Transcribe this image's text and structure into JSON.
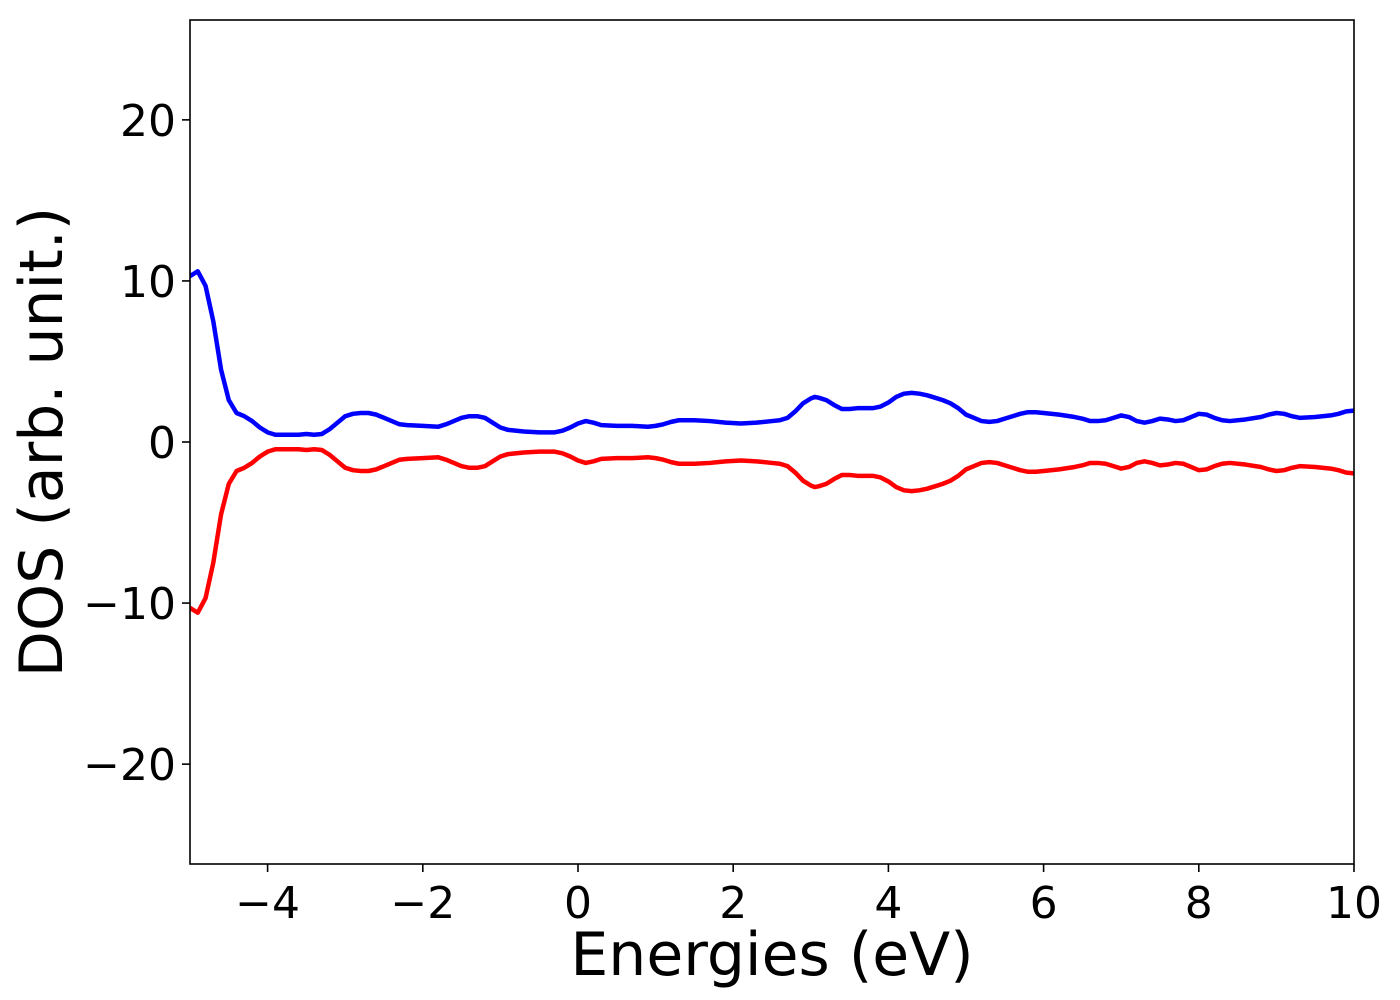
{
  "chart_data": {
    "type": "line",
    "title": "",
    "xlabel": "Energies (eV)",
    "ylabel": "DOS (arb. unit.)",
    "xlim": [
      -5,
      10
    ],
    "ylim": [
      -26.2,
      26.2
    ],
    "grid": false,
    "legend": "none",
    "x_ticks": [
      {
        "value": -4,
        "label": "−4"
      },
      {
        "value": -2,
        "label": "−2"
      },
      {
        "value": 0,
        "label": "0"
      },
      {
        "value": 2,
        "label": "2"
      },
      {
        "value": 4,
        "label": "4"
      },
      {
        "value": 6,
        "label": "6"
      },
      {
        "value": 8,
        "label": "8"
      },
      {
        "value": 10,
        "label": "10"
      }
    ],
    "y_ticks": [
      {
        "value": 20,
        "label": "20"
      },
      {
        "value": 10,
        "label": "10"
      },
      {
        "value": 0,
        "label": "0"
      },
      {
        "value": -10,
        "label": "−10"
      },
      {
        "value": -20,
        "label": "−20"
      }
    ],
    "series": [
      {
        "color": "#0000ff",
        "points": [
          [
            -5.0,
            10.3
          ],
          [
            -4.9,
            10.6
          ],
          [
            -4.8,
            9.7
          ],
          [
            -4.7,
            7.5
          ],
          [
            -4.6,
            4.5
          ],
          [
            -4.5,
            2.6
          ],
          [
            -4.4,
            1.8
          ],
          [
            -4.3,
            1.6
          ],
          [
            -4.2,
            1.3
          ],
          [
            -4.1,
            0.9
          ],
          [
            -4.0,
            0.6
          ],
          [
            -3.9,
            0.45
          ],
          [
            -3.8,
            0.45
          ],
          [
            -3.6,
            0.45
          ],
          [
            -3.5,
            0.5
          ],
          [
            -3.4,
            0.45
          ],
          [
            -3.3,
            0.5
          ],
          [
            -3.2,
            0.8
          ],
          [
            -3.1,
            1.2
          ],
          [
            -3.0,
            1.6
          ],
          [
            -2.9,
            1.75
          ],
          [
            -2.8,
            1.8
          ],
          [
            -2.7,
            1.8
          ],
          [
            -2.6,
            1.7
          ],
          [
            -2.5,
            1.5
          ],
          [
            -2.4,
            1.3
          ],
          [
            -2.3,
            1.1
          ],
          [
            -2.2,
            1.05
          ],
          [
            -2.0,
            1.0
          ],
          [
            -1.8,
            0.95
          ],
          [
            -1.7,
            1.1
          ],
          [
            -1.6,
            1.3
          ],
          [
            -1.5,
            1.5
          ],
          [
            -1.4,
            1.6
          ],
          [
            -1.3,
            1.6
          ],
          [
            -1.2,
            1.5
          ],
          [
            -1.1,
            1.2
          ],
          [
            -1.0,
            0.9
          ],
          [
            -0.9,
            0.75
          ],
          [
            -0.7,
            0.65
          ],
          [
            -0.5,
            0.6
          ],
          [
            -0.3,
            0.6
          ],
          [
            -0.2,
            0.7
          ],
          [
            -0.1,
            0.9
          ],
          [
            0.0,
            1.15
          ],
          [
            0.1,
            1.3
          ],
          [
            0.2,
            1.2
          ],
          [
            0.3,
            1.05
          ],
          [
            0.5,
            1.0
          ],
          [
            0.7,
            1.0
          ],
          [
            0.9,
            0.95
          ],
          [
            1.0,
            1.0
          ],
          [
            1.1,
            1.1
          ],
          [
            1.2,
            1.25
          ],
          [
            1.3,
            1.35
          ],
          [
            1.5,
            1.35
          ],
          [
            1.7,
            1.3
          ],
          [
            1.9,
            1.2
          ],
          [
            2.1,
            1.15
          ],
          [
            2.3,
            1.2
          ],
          [
            2.5,
            1.3
          ],
          [
            2.6,
            1.35
          ],
          [
            2.7,
            1.5
          ],
          [
            2.8,
            1.9
          ],
          [
            2.9,
            2.4
          ],
          [
            3.0,
            2.7
          ],
          [
            3.05,
            2.8
          ],
          [
            3.1,
            2.75
          ],
          [
            3.2,
            2.6
          ],
          [
            3.3,
            2.3
          ],
          [
            3.4,
            2.05
          ],
          [
            3.5,
            2.05
          ],
          [
            3.6,
            2.1
          ],
          [
            3.7,
            2.1
          ],
          [
            3.8,
            2.1
          ],
          [
            3.9,
            2.2
          ],
          [
            4.0,
            2.45
          ],
          [
            4.1,
            2.8
          ],
          [
            4.2,
            3.0
          ],
          [
            4.3,
            3.05
          ],
          [
            4.4,
            3.0
          ],
          [
            4.5,
            2.9
          ],
          [
            4.6,
            2.75
          ],
          [
            4.7,
            2.6
          ],
          [
            4.8,
            2.4
          ],
          [
            4.9,
            2.1
          ],
          [
            5.0,
            1.7
          ],
          [
            5.1,
            1.5
          ],
          [
            5.2,
            1.3
          ],
          [
            5.3,
            1.25
          ],
          [
            5.4,
            1.3
          ],
          [
            5.5,
            1.45
          ],
          [
            5.6,
            1.6
          ],
          [
            5.7,
            1.75
          ],
          [
            5.8,
            1.85
          ],
          [
            5.9,
            1.85
          ],
          [
            6.0,
            1.8
          ],
          [
            6.2,
            1.7
          ],
          [
            6.4,
            1.55
          ],
          [
            6.5,
            1.45
          ],
          [
            6.6,
            1.3
          ],
          [
            6.7,
            1.3
          ],
          [
            6.8,
            1.35
          ],
          [
            6.9,
            1.5
          ],
          [
            7.0,
            1.65
          ],
          [
            7.1,
            1.55
          ],
          [
            7.2,
            1.3
          ],
          [
            7.3,
            1.2
          ],
          [
            7.4,
            1.3
          ],
          [
            7.5,
            1.45
          ],
          [
            7.6,
            1.4
          ],
          [
            7.7,
            1.3
          ],
          [
            7.8,
            1.35
          ],
          [
            7.9,
            1.55
          ],
          [
            8.0,
            1.75
          ],
          [
            8.1,
            1.7
          ],
          [
            8.2,
            1.5
          ],
          [
            8.3,
            1.35
          ],
          [
            8.4,
            1.3
          ],
          [
            8.6,
            1.4
          ],
          [
            8.8,
            1.55
          ],
          [
            8.9,
            1.7
          ],
          [
            9.0,
            1.8
          ],
          [
            9.1,
            1.75
          ],
          [
            9.2,
            1.6
          ],
          [
            9.3,
            1.5
          ],
          [
            9.5,
            1.55
          ],
          [
            9.7,
            1.65
          ],
          [
            9.8,
            1.75
          ],
          [
            9.9,
            1.9
          ],
          [
            10.0,
            1.95
          ]
        ]
      },
      {
        "color": "#ff0000",
        "points": [
          [
            -5.0,
            -10.3
          ],
          [
            -4.9,
            -10.6
          ],
          [
            -4.8,
            -9.7
          ],
          [
            -4.7,
            -7.5
          ],
          [
            -4.6,
            -4.5
          ],
          [
            -4.5,
            -2.6
          ],
          [
            -4.4,
            -1.8
          ],
          [
            -4.3,
            -1.6
          ],
          [
            -4.2,
            -1.3
          ],
          [
            -4.1,
            -0.9
          ],
          [
            -4.0,
            -0.6
          ],
          [
            -3.9,
            -0.45
          ],
          [
            -3.8,
            -0.45
          ],
          [
            -3.6,
            -0.45
          ],
          [
            -3.5,
            -0.5
          ],
          [
            -3.4,
            -0.45
          ],
          [
            -3.3,
            -0.5
          ],
          [
            -3.2,
            -0.8
          ],
          [
            -3.1,
            -1.2
          ],
          [
            -3.0,
            -1.6
          ],
          [
            -2.9,
            -1.75
          ],
          [
            -2.8,
            -1.8
          ],
          [
            -2.7,
            -1.8
          ],
          [
            -2.6,
            -1.7
          ],
          [
            -2.5,
            -1.5
          ],
          [
            -2.4,
            -1.3
          ],
          [
            -2.3,
            -1.1
          ],
          [
            -2.2,
            -1.05
          ],
          [
            -2.0,
            -1.0
          ],
          [
            -1.8,
            -0.95
          ],
          [
            -1.7,
            -1.1
          ],
          [
            -1.6,
            -1.3
          ],
          [
            -1.5,
            -1.5
          ],
          [
            -1.4,
            -1.6
          ],
          [
            -1.3,
            -1.6
          ],
          [
            -1.2,
            -1.5
          ],
          [
            -1.1,
            -1.2
          ],
          [
            -1.0,
            -0.9
          ],
          [
            -0.9,
            -0.75
          ],
          [
            -0.7,
            -0.65
          ],
          [
            -0.5,
            -0.6
          ],
          [
            -0.3,
            -0.6
          ],
          [
            -0.2,
            -0.7
          ],
          [
            -0.1,
            -0.9
          ],
          [
            0.0,
            -1.15
          ],
          [
            0.1,
            -1.3
          ],
          [
            0.2,
            -1.2
          ],
          [
            0.3,
            -1.05
          ],
          [
            0.5,
            -1.0
          ],
          [
            0.7,
            -1.0
          ],
          [
            0.9,
            -0.95
          ],
          [
            1.0,
            -1.0
          ],
          [
            1.1,
            -1.1
          ],
          [
            1.2,
            -1.25
          ],
          [
            1.3,
            -1.35
          ],
          [
            1.5,
            -1.35
          ],
          [
            1.7,
            -1.3
          ],
          [
            1.9,
            -1.2
          ],
          [
            2.1,
            -1.15
          ],
          [
            2.3,
            -1.2
          ],
          [
            2.5,
            -1.3
          ],
          [
            2.6,
            -1.35
          ],
          [
            2.7,
            -1.5
          ],
          [
            2.8,
            -1.9
          ],
          [
            2.9,
            -2.4
          ],
          [
            3.0,
            -2.7
          ],
          [
            3.05,
            -2.8
          ],
          [
            3.1,
            -2.75
          ],
          [
            3.2,
            -2.6
          ],
          [
            3.3,
            -2.3
          ],
          [
            3.4,
            -2.05
          ],
          [
            3.5,
            -2.05
          ],
          [
            3.6,
            -2.1
          ],
          [
            3.7,
            -2.1
          ],
          [
            3.8,
            -2.1
          ],
          [
            3.9,
            -2.2
          ],
          [
            4.0,
            -2.45
          ],
          [
            4.1,
            -2.8
          ],
          [
            4.2,
            -3.0
          ],
          [
            4.3,
            -3.05
          ],
          [
            4.4,
            -3.0
          ],
          [
            4.5,
            -2.9
          ],
          [
            4.6,
            -2.75
          ],
          [
            4.7,
            -2.6
          ],
          [
            4.8,
            -2.4
          ],
          [
            4.9,
            -2.1
          ],
          [
            5.0,
            -1.7
          ],
          [
            5.1,
            -1.5
          ],
          [
            5.2,
            -1.3
          ],
          [
            5.3,
            -1.25
          ],
          [
            5.4,
            -1.3
          ],
          [
            5.5,
            -1.45
          ],
          [
            5.6,
            -1.6
          ],
          [
            5.7,
            -1.75
          ],
          [
            5.8,
            -1.85
          ],
          [
            5.9,
            -1.85
          ],
          [
            6.0,
            -1.8
          ],
          [
            6.2,
            -1.7
          ],
          [
            6.4,
            -1.55
          ],
          [
            6.5,
            -1.45
          ],
          [
            6.6,
            -1.3
          ],
          [
            6.7,
            -1.3
          ],
          [
            6.8,
            -1.35
          ],
          [
            6.9,
            -1.5
          ],
          [
            7.0,
            -1.65
          ],
          [
            7.1,
            -1.55
          ],
          [
            7.2,
            -1.3
          ],
          [
            7.3,
            -1.2
          ],
          [
            7.4,
            -1.3
          ],
          [
            7.5,
            -1.45
          ],
          [
            7.6,
            -1.4
          ],
          [
            7.7,
            -1.3
          ],
          [
            7.8,
            -1.35
          ],
          [
            7.9,
            -1.55
          ],
          [
            8.0,
            -1.75
          ],
          [
            8.1,
            -1.7
          ],
          [
            8.2,
            -1.5
          ],
          [
            8.3,
            -1.35
          ],
          [
            8.4,
            -1.3
          ],
          [
            8.6,
            -1.4
          ],
          [
            8.8,
            -1.55
          ],
          [
            8.9,
            -1.7
          ],
          [
            9.0,
            -1.8
          ],
          [
            9.1,
            -1.75
          ],
          [
            9.2,
            -1.6
          ],
          [
            9.3,
            -1.5
          ],
          [
            9.5,
            -1.55
          ],
          [
            9.7,
            -1.65
          ],
          [
            9.8,
            -1.75
          ],
          [
            9.9,
            -1.9
          ],
          [
            10.0,
            -1.95
          ]
        ]
      }
    ]
  }
}
